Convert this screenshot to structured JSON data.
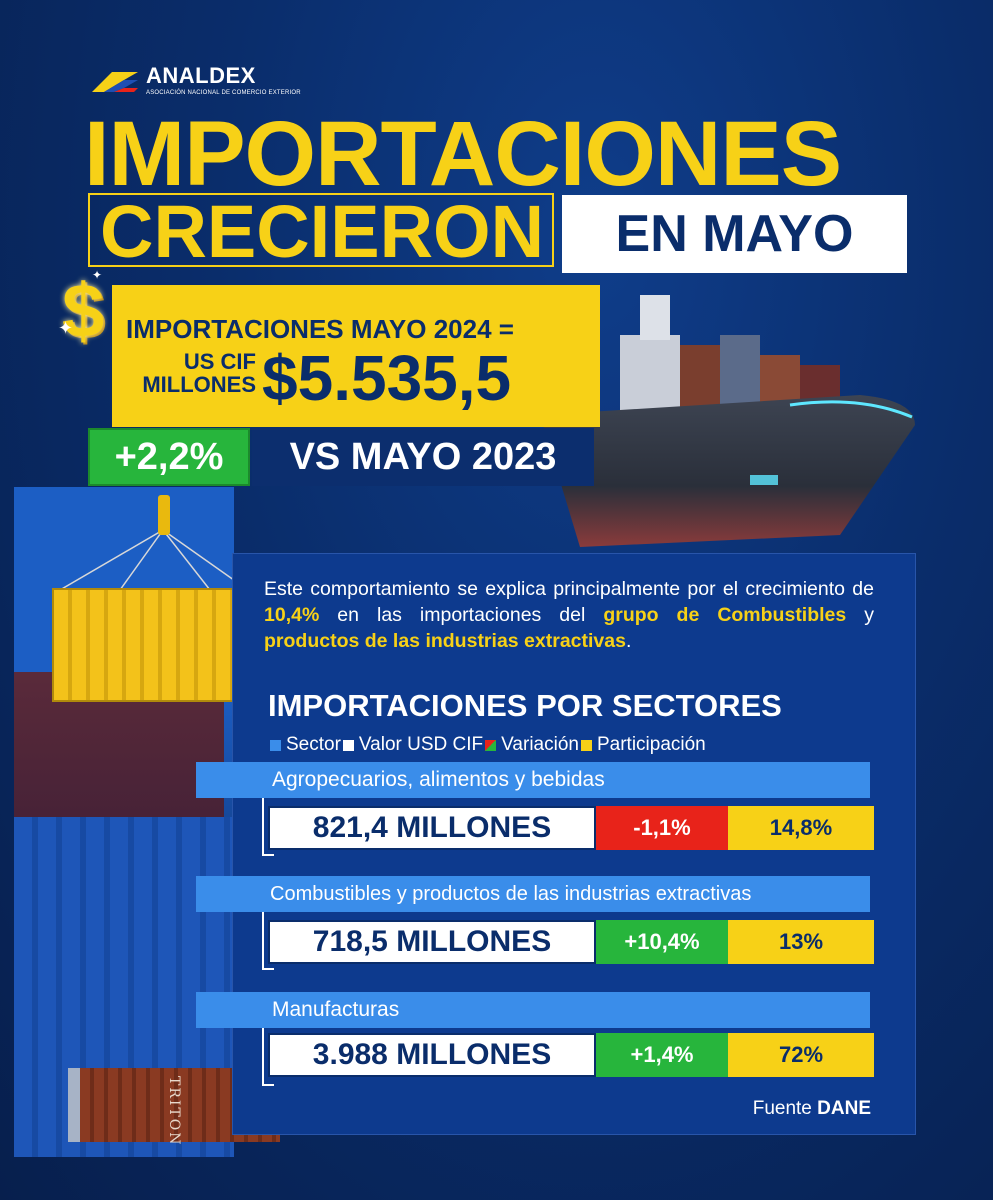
{
  "colors": {
    "navy": "#0a2d6b",
    "yellow": "#f7d117",
    "green": "#27b53c",
    "red": "#e8231a",
    "sector_blue": "#3a8dea"
  },
  "logo": {
    "name": "ANALDEX",
    "subtitle": "ASOCIACIÓN NACIONAL DE COMERCIO EXTERIOR"
  },
  "headline": {
    "line1": "IMPORTACIONES",
    "line2": "CRECIERON",
    "line3": "EN MAYO"
  },
  "dollar_icon": "dollar-sign-icon",
  "highlight": {
    "label": "IMPORTACIONES MAYO 2024 =",
    "unit_line1": "US CIF",
    "unit_line2": "MILLONES",
    "amount": "$5.535,5",
    "growth": "+2,2%",
    "comparison": "VS MAYO 2023"
  },
  "description": {
    "part1": "Este comportamiento se explica principalmente por el crecimiento de ",
    "hl1": "10,4%",
    "part2": " en las importaciones del ",
    "hl2": "grupo de Combustibles",
    "part3": " y ",
    "hl3": "productos de las industrias extractivas",
    "part4": "."
  },
  "sectors_title": "IMPORTACIONES POR SECTORES",
  "legend": [
    {
      "label": "Sector",
      "color": "#3a8dea"
    },
    {
      "label": "Valor USD CIF",
      "color": "#ffffff"
    },
    {
      "label": "Variación",
      "color": "#27b53c"
    },
    {
      "label": "Participación",
      "color": "#f7d117"
    }
  ],
  "sectors": [
    {
      "name": "Agropecuarios, alimentos y bebidas",
      "value": "821,4 MILLONES",
      "variation": "-1,1%",
      "variation_color": "#e8231a",
      "share": "14,8%"
    },
    {
      "name": "Combustibles y productos de las industrias extractivas",
      "value": "718,5 MILLONES",
      "variation": "+10,4%",
      "variation_color": "#27b53c",
      "share": "13%"
    },
    {
      "name": "Manufacturas",
      "value": "3.988 MILLONES",
      "variation": "+1,4%",
      "variation_color": "#27b53c",
      "share": "72%"
    }
  ],
  "source": {
    "label": "Fuente",
    "name": "DANE"
  },
  "container_text": "TRITON"
}
